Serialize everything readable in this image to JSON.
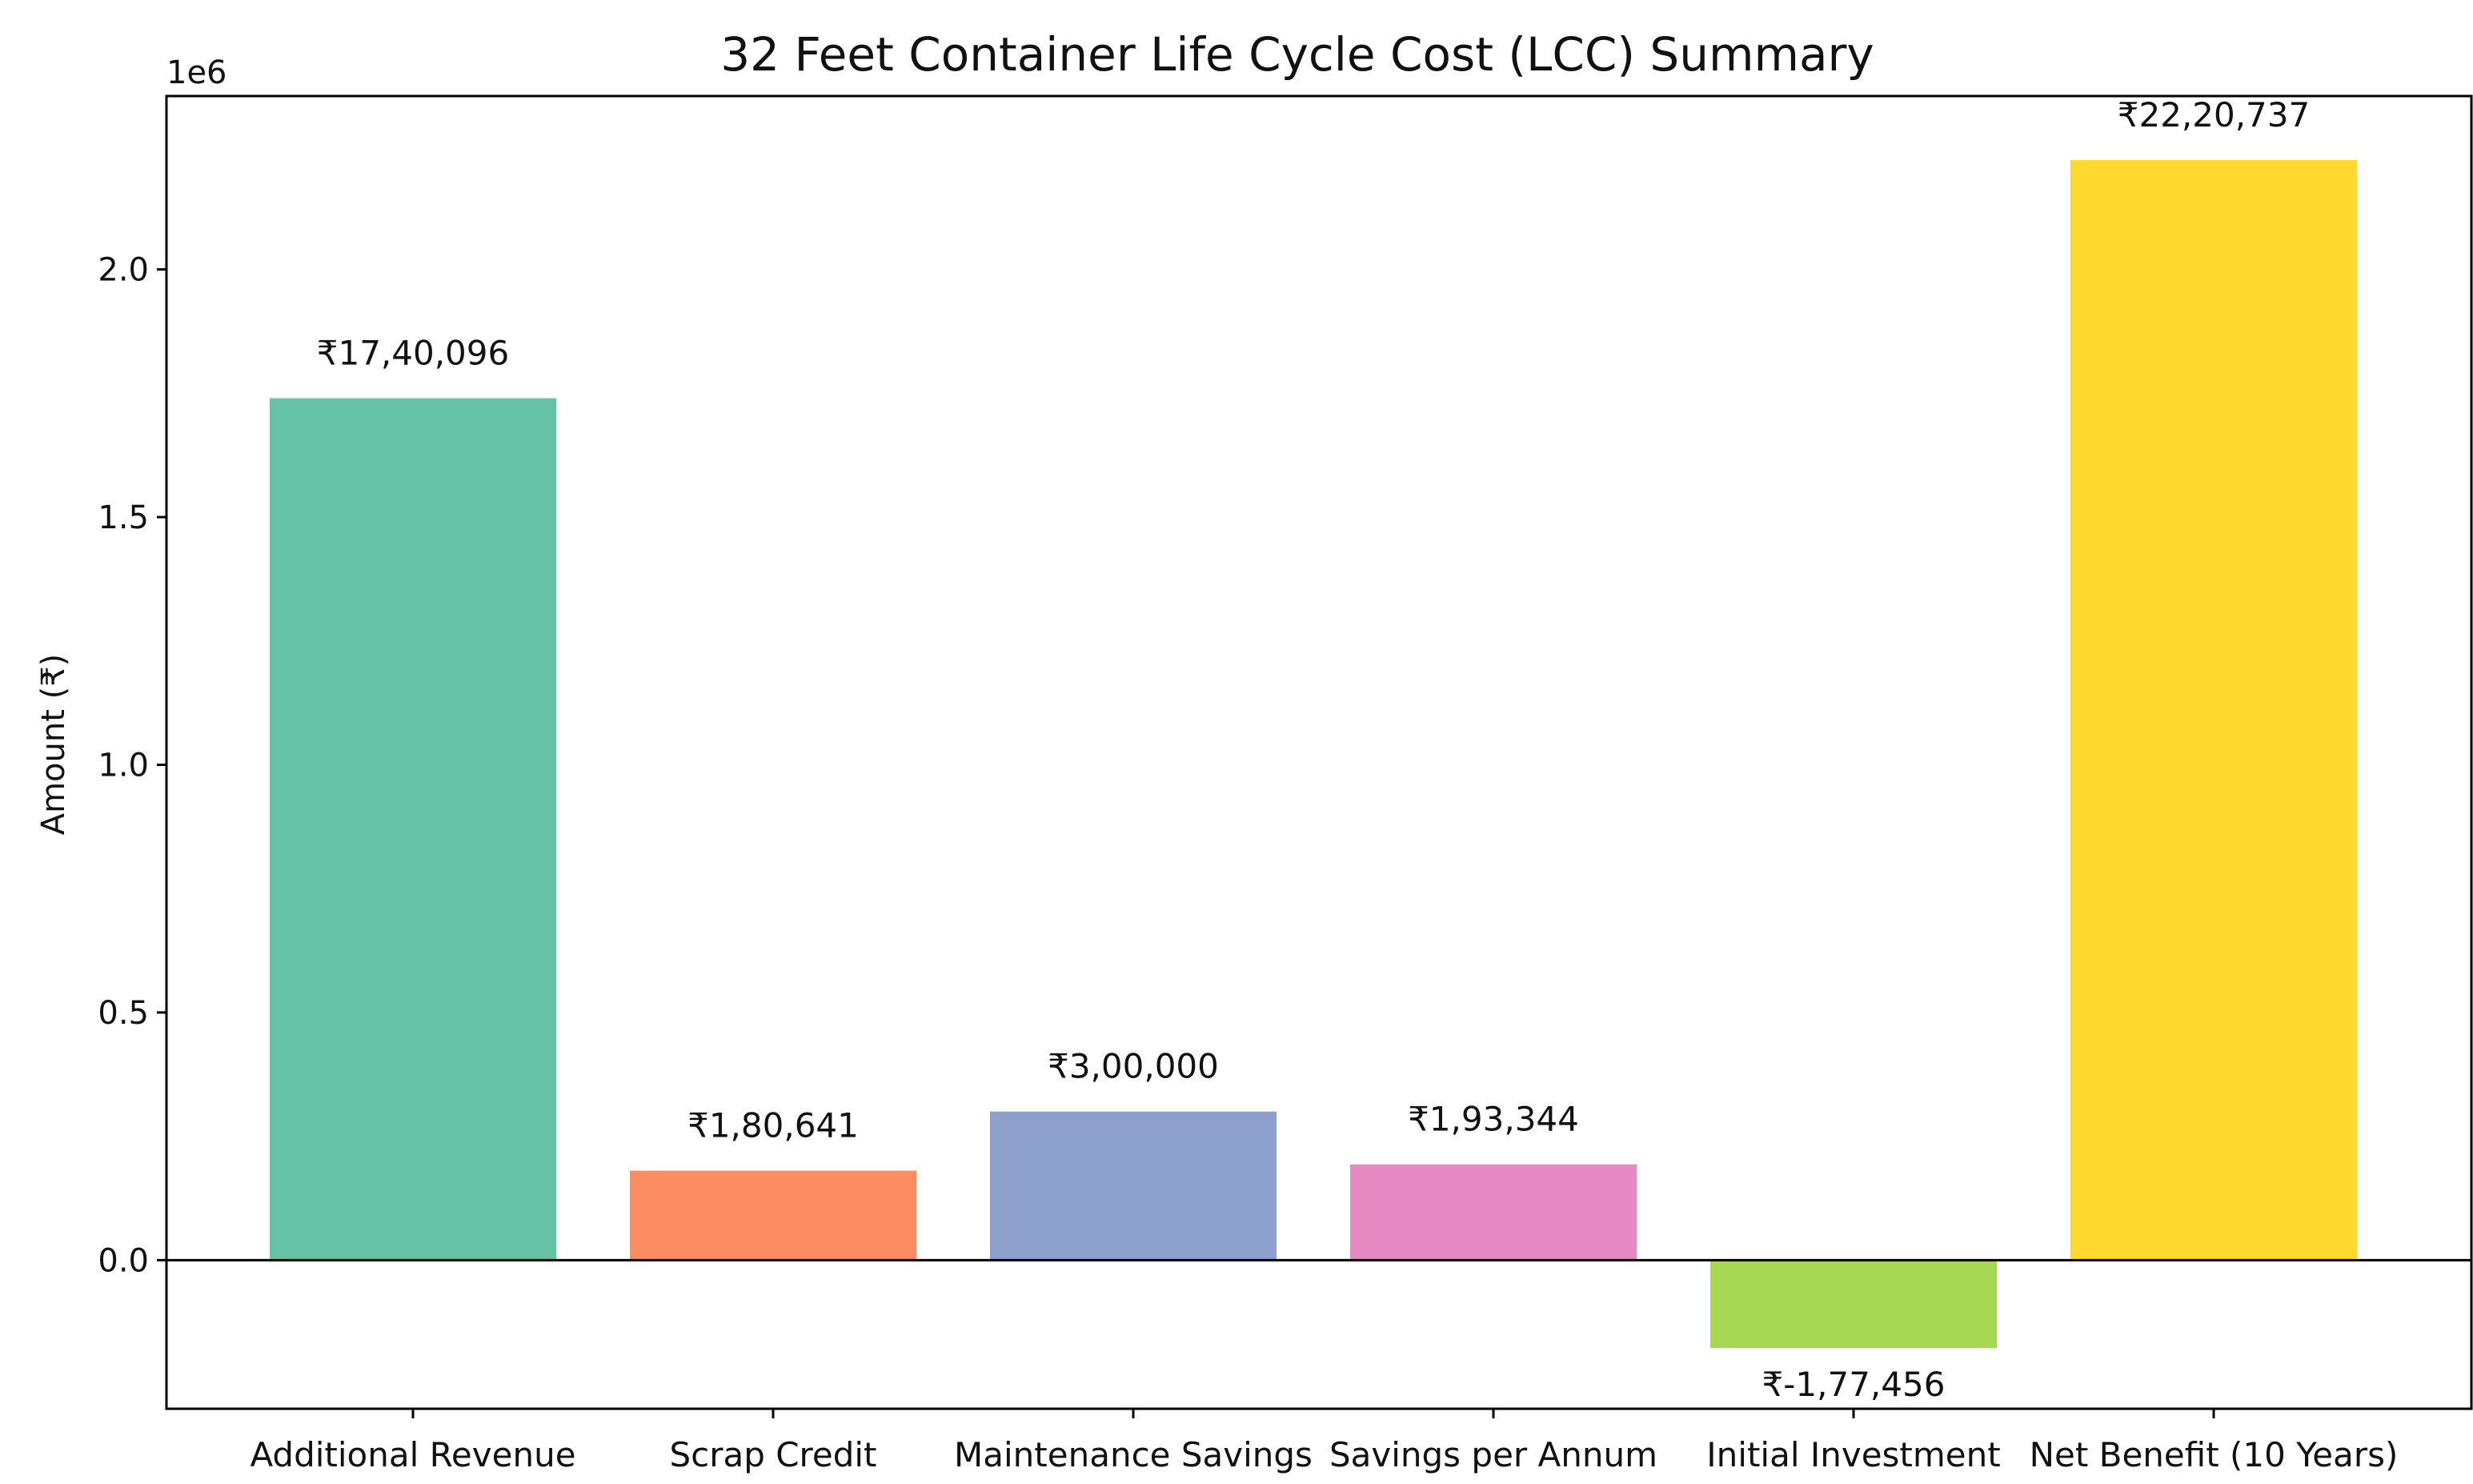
{
  "chart_data": {
    "type": "bar",
    "title": "32 Feet Container Life Cycle Cost (LCC) Summary",
    "xlabel": "",
    "ylabel": "Amount (₹)",
    "scale_offset_label": "1e6",
    "ylim": [
      -0.3,
      2.35
    ],
    "yticks": [
      0.0,
      0.5,
      1.0,
      1.5,
      2.0
    ],
    "ytick_labels": [
      "0.0",
      "0.5",
      "1.0",
      "1.5",
      "2.0"
    ],
    "categories": [
      "Additional Revenue",
      "Scrap Credit",
      "Maintenance Savings",
      "Savings per Annum",
      "Initial Investment",
      "Net Benefit (10 Years)"
    ],
    "values": [
      1740096,
      180641,
      300000,
      193344,
      -177456,
      2220737
    ],
    "value_labels": [
      "₹17,40,096",
      "₹1,80,641",
      "₹3,00,000",
      "₹1,93,344",
      "₹-1,77,456",
      "₹22,20,737"
    ],
    "colors": [
      "#66c2a5",
      "#fc8d62",
      "#8da0cb",
      "#e78ac3",
      "#a6d854",
      "#ffd92f"
    ],
    "zero_line": true,
    "grid": false,
    "legend": "none"
  }
}
